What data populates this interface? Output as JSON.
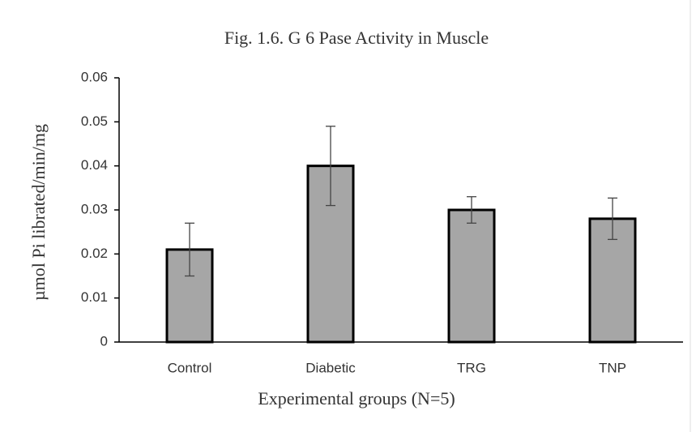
{
  "chart_data": {
    "type": "bar",
    "title": "Fig. 1.6. G 6 Pase Activity  in Muscle",
    "x_label": "Experimental groups (N=5)",
    "y_label": "µmol Pi librated/min/mg",
    "categories": [
      "Control",
      "Diabetic",
      "TRG",
      "TNP"
    ],
    "values": [
      0.021,
      0.04,
      0.03,
      0.028
    ],
    "errors": [
      0.006,
      0.009,
      0.003,
      0.0047
    ],
    "color": "#a6a6a6",
    "ylim": [
      0,
      0.06
    ],
    "yticks": [
      0,
      0.01,
      0.02,
      0.03,
      0.04,
      0.05,
      0.06
    ],
    "grid": false
  }
}
